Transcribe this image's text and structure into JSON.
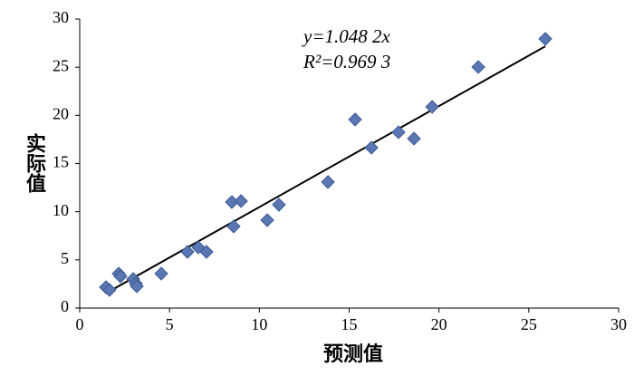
{
  "chart_data": {
    "type": "scatter",
    "x_label": "预测值",
    "y_label": "实际值",
    "annotations": [
      "y=1.048 2x",
      "R²=0.969 3"
    ],
    "trend_slope": 1.0482,
    "color": "#5b77b3",
    "x": [
      1.46,
      1.66,
      2.17,
      2.27,
      2.98,
      3.13,
      3.18,
      4.54,
      6.0,
      6.6,
      7.06,
      8.47,
      8.57,
      8.98,
      10.44,
      11.09,
      13.82,
      15.33,
      16.24,
      17.75,
      18.61,
      19.62,
      22.19,
      25.92
    ],
    "y": [
      2.16,
      1.88,
      3.57,
      3.29,
      3.01,
      2.54,
      2.26,
      3.57,
      5.83,
      6.3,
      5.83,
      11.0,
      8.47,
      11.1,
      9.12,
      10.72,
      13.08,
      19.57,
      16.65,
      18.25,
      17.59,
      20.88,
      25.02,
      27.94
    ],
    "xlim": [
      0,
      30
    ],
    "ylim": [
      0,
      30
    ],
    "xticks": [
      0,
      5,
      10,
      15,
      20,
      25,
      30
    ],
    "yticks": [
      0,
      5,
      10,
      15,
      20,
      25,
      30
    ]
  }
}
